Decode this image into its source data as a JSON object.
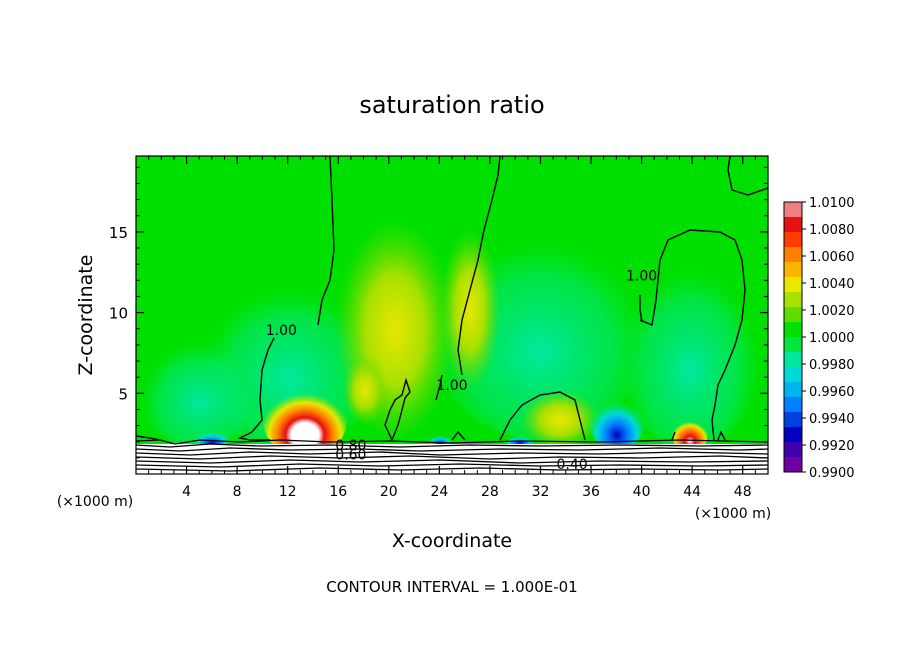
{
  "chart_data": {
    "type": "heatmap",
    "title": "saturation ratio",
    "xlabel": "X-coordinate",
    "ylabel": "Z-coordinate",
    "x_unit_left": "(×1000 m)",
    "x_unit_right": "(×1000 m)",
    "xlim": [
      0,
      50
    ],
    "ylim": [
      0,
      19.7
    ],
    "x_ticks": [
      4,
      8,
      12,
      16,
      20,
      24,
      28,
      32,
      36,
      40,
      44,
      48
    ],
    "y_ticks": [
      5,
      10,
      15
    ],
    "footer": "CONTOUR INTERVAL = 1.000E-01",
    "colorbar": {
      "labels": [
        "1.0100",
        "1.0080",
        "1.0060",
        "1.0040",
        "1.0020",
        "1.0000",
        "0.9980",
        "0.9960",
        "0.9940",
        "0.9920",
        "0.9900"
      ],
      "colors": [
        "#f08080",
        "#e81010",
        "#ff3c00",
        "#ff8000",
        "#ffb400",
        "#e8e800",
        "#a8e000",
        "#60dc00",
        "#00e000",
        "#00e840",
        "#00e8a0",
        "#00d8d8",
        "#00b4f0",
        "#0080ff",
        "#0040e0",
        "#0000c0",
        "#4000b0",
        "#7000a0"
      ]
    },
    "contour_labels": [
      {
        "text": "1.00",
        "x": 11.5,
        "z": 8.6
      },
      {
        "text": "1.00",
        "x": 25.0,
        "z": 5.2
      },
      {
        "text": "1.00",
        "x": 40.0,
        "z": 12.0
      },
      {
        "text": "0.80",
        "x": 17.0,
        "z": 1.5
      },
      {
        "text": "0.60",
        "x": 17.0,
        "z": 0.9
      },
      {
        "text": "0.40",
        "x": 34.5,
        "z": 0.3
      }
    ]
  }
}
